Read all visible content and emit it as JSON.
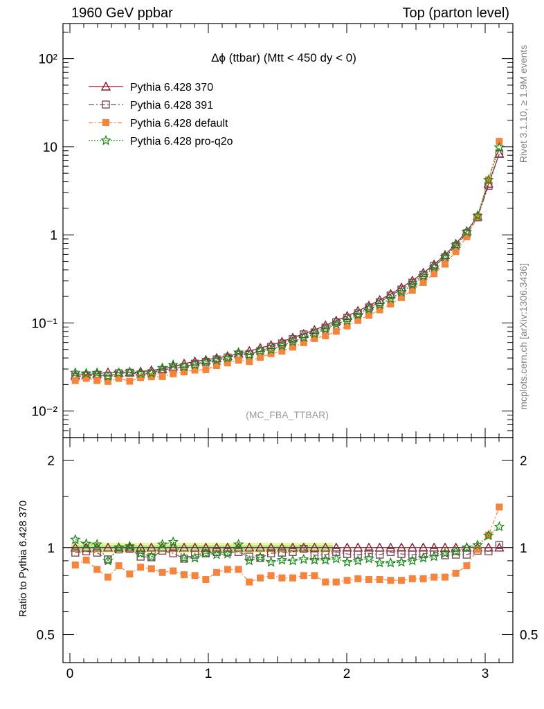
{
  "header": {
    "left": "1960 GeV ppbar",
    "right": "Top (parton level)"
  },
  "side_labels": {
    "rivet": "Rivet 3.1.10, ≥ 1.9M events",
    "mcplots": "mcplots.cern.ch [arXiv:1306.3436]"
  },
  "plot_title": "Δϕ (ttbar) (Mtt < 450 dy < 0)",
  "watermark": "(MC_FBA_TTBAR)",
  "ratio_ylabel": "Ratio to Pythia 6.428 370",
  "main_yticks": [
    "10⁻²",
    "10⁻¹",
    "1",
    "10",
    "10²"
  ],
  "ratio_yticks": [
    "0.5",
    "1",
    "2"
  ],
  "xticks": [
    "0",
    "1",
    "2",
    "3"
  ],
  "colors": {
    "s370": "#8b1a2b",
    "s391": "#7a4a5a",
    "sdefault": "#f5843c",
    "sq2o": "#1a8a1a"
  },
  "chart_data": [
    {
      "type": "line",
      "scale": "log",
      "xlim": [
        -0.05,
        3.2
      ],
      "ylim": [
        0.005,
        250
      ],
      "x": [
        0.039,
        0.118,
        0.196,
        0.275,
        0.353,
        0.432,
        0.511,
        0.589,
        0.668,
        0.746,
        0.825,
        0.903,
        0.982,
        1.06,
        1.139,
        1.218,
        1.296,
        1.375,
        1.453,
        1.532,
        1.61,
        1.689,
        1.767,
        1.846,
        1.924,
        2.003,
        2.081,
        2.16,
        2.238,
        2.317,
        2.395,
        2.474,
        2.553,
        2.631,
        2.71,
        2.788,
        2.867,
        2.945,
        3.024,
        3.102
      ],
      "series": [
        {
          "name": "Pythia 6.428 370",
          "values": [
            0.0255,
            0.026,
            0.0265,
            0.0275,
            0.0272,
            0.0275,
            0.028,
            0.029,
            0.03,
            0.032,
            0.0345,
            0.0365,
            0.038,
            0.04,
            0.042,
            0.045,
            0.048,
            0.052,
            0.056,
            0.061,
            0.068,
            0.075,
            0.083,
            0.094,
            0.106,
            0.12,
            0.137,
            0.157,
            0.182,
            0.213,
            0.252,
            0.302,
            0.37,
            0.46,
            0.59,
            0.79,
            1.1,
            1.62,
            3.8,
            8.3
          ]
        },
        {
          "name": "Pythia 6.428 391",
          "values": [
            0.0245,
            0.0252,
            0.0255,
            0.025,
            0.0268,
            0.0272,
            0.026,
            0.0268,
            0.0292,
            0.0305,
            0.0315,
            0.0345,
            0.0362,
            0.0385,
            0.0405,
            0.0435,
            0.0445,
            0.0478,
            0.0535,
            0.0585,
            0.0655,
            0.0742,
            0.078,
            0.0885,
            0.102,
            0.114,
            0.129,
            0.15,
            0.172,
            0.205,
            0.239,
            0.286,
            0.352,
            0.445,
            0.555,
            0.745,
            1.04,
            1.58,
            3.6,
            8.4
          ]
        },
        {
          "name": "Pythia 6.428 default",
          "values": [
            0.0222,
            0.0235,
            0.0222,
            0.0217,
            0.0235,
            0.0218,
            0.024,
            0.0245,
            0.0246,
            0.0265,
            0.0278,
            0.0292,
            0.0295,
            0.0328,
            0.0352,
            0.0378,
            0.0365,
            0.0408,
            0.0448,
            0.0478,
            0.0532,
            0.0598,
            0.0665,
            0.0715,
            0.0805,
            0.0925,
            0.107,
            0.122,
            0.141,
            0.164,
            0.194,
            0.235,
            0.288,
            0.362,
            0.465,
            0.645,
            0.95,
            1.6,
            4.2,
            11.5
          ]
        },
        {
          "name": "Pythia 6.428 pro-q2o",
          "values": [
            0.0272,
            0.0268,
            0.0272,
            0.0248,
            0.0272,
            0.0278,
            0.0268,
            0.027,
            0.0308,
            0.0335,
            0.0318,
            0.0335,
            0.0362,
            0.0378,
            0.04,
            0.0462,
            0.0432,
            0.0482,
            0.0498,
            0.0552,
            0.0612,
            0.0682,
            0.0752,
            0.0852,
            0.0972,
            0.1065,
            0.1235,
            0.1435,
            0.1615,
            0.1885,
            0.224,
            0.271,
            0.34,
            0.428,
            0.565,
            0.765,
            1.08,
            1.65,
            4.2,
            9.8
          ]
        }
      ]
    },
    {
      "type": "line",
      "scale": "log",
      "xlim": [
        -0.05,
        3.2
      ],
      "ylim": [
        0.4,
        2.4
      ],
      "x": [
        0.039,
        0.118,
        0.196,
        0.275,
        0.353,
        0.432,
        0.511,
        0.589,
        0.668,
        0.746,
        0.825,
        0.903,
        0.982,
        1.06,
        1.139,
        1.218,
        1.296,
        1.375,
        1.453,
        1.532,
        1.61,
        1.689,
        1.767,
        1.846,
        1.924,
        2.003,
        2.081,
        2.16,
        2.238,
        2.317,
        2.395,
        2.474,
        2.553,
        2.631,
        2.71,
        2.788,
        2.867,
        2.945,
        3.024,
        3.102
      ],
      "series": [
        {
          "name": "Pythia 6.428 370",
          "values": [
            1,
            1,
            1,
            1,
            1,
            1,
            1,
            1,
            1,
            1,
            1,
            1,
            1,
            1,
            1,
            1,
            1,
            1,
            1,
            1,
            1,
            1,
            1,
            1,
            1,
            1,
            1,
            1,
            1,
            1,
            1,
            1,
            1,
            1,
            1,
            1,
            1,
            1,
            1,
            1
          ]
        },
        {
          "name": "Pythia 6.428 391",
          "values": [
            0.96,
            0.97,
            0.96,
            0.91,
            0.985,
            0.99,
            0.93,
            0.925,
            0.975,
            0.955,
            0.915,
            0.945,
            0.955,
            0.965,
            0.965,
            0.965,
            0.93,
            0.92,
            0.955,
            0.96,
            0.965,
            0.99,
            0.94,
            0.945,
            0.965,
            0.95,
            0.945,
            0.955,
            0.945,
            0.965,
            0.95,
            0.945,
            0.95,
            0.965,
            0.94,
            0.945,
            0.945,
            0.975,
            0.97,
            1.02
          ]
        },
        {
          "name": "Pythia 6.428 default",
          "values": [
            0.87,
            0.905,
            0.84,
            0.79,
            0.865,
            0.81,
            0.855,
            0.845,
            0.82,
            0.83,
            0.805,
            0.8,
            0.775,
            0.82,
            0.84,
            0.84,
            0.76,
            0.785,
            0.8,
            0.785,
            0.785,
            0.8,
            0.8,
            0.76,
            0.76,
            0.77,
            0.78,
            0.775,
            0.775,
            0.77,
            0.77,
            0.78,
            0.78,
            0.79,
            0.79,
            0.815,
            0.865,
            0.985,
            1.105,
            1.38
          ]
        },
        {
          "name": "Pythia 6.428 pro-q2o",
          "values": [
            1.065,
            1.03,
            1.025,
            0.9,
            1.0,
            1.01,
            0.955,
            0.93,
            1.025,
            1.045,
            0.92,
            0.92,
            0.955,
            0.945,
            0.95,
            1.025,
            0.9,
            0.925,
            0.89,
            0.905,
            0.9,
            0.91,
            0.905,
            0.905,
            0.915,
            0.89,
            0.9,
            0.915,
            0.885,
            0.885,
            0.89,
            0.9,
            0.92,
            0.93,
            0.955,
            0.97,
            1.0,
            1.02,
            1.1,
            1.18
          ]
        }
      ]
    }
  ]
}
